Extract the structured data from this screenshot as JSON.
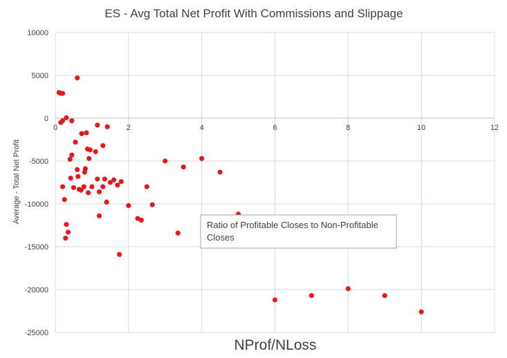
{
  "chart_data": {
    "type": "scatter",
    "title": "ES - Avg Total Net Profit With Commissions and Slippage",
    "xlabel": "NProf/NLoss",
    "ylabel": "Average - Total Net Profit",
    "xlim": [
      0,
      12
    ],
    "ylim": [
      -25000,
      10000
    ],
    "x_ticks": [
      "0",
      "2",
      "4",
      "6",
      "8",
      "10",
      "12"
    ],
    "y_ticks": [
      "10000",
      "5000",
      "0",
      "-5000",
      "-10000",
      "-15000",
      "-20000",
      "-25000"
    ],
    "grid": true,
    "marker_color": "#e31a1c",
    "annotation": {
      "line1": "Ratio of Profitable Closes to Non-Profitable",
      "line2": "Closes"
    },
    "points": [
      {
        "x": 0.1,
        "y": 3000
      },
      {
        "x": 0.15,
        "y": 2900
      },
      {
        "x": 0.2,
        "y": 2900
      },
      {
        "x": 0.6,
        "y": 4700
      },
      {
        "x": 0.15,
        "y": -500
      },
      {
        "x": 0.2,
        "y": -300
      },
      {
        "x": 0.3,
        "y": 50
      },
      {
        "x": 0.45,
        "y": -300
      },
      {
        "x": 0.2,
        "y": -8000
      },
      {
        "x": 0.25,
        "y": -9500
      },
      {
        "x": 0.3,
        "y": -12400
      },
      {
        "x": 0.35,
        "y": -13300
      },
      {
        "x": 0.28,
        "y": -14000
      },
      {
        "x": 0.4,
        "y": -4800
      },
      {
        "x": 0.42,
        "y": -7000
      },
      {
        "x": 0.45,
        "y": -4300
      },
      {
        "x": 0.5,
        "y": -8100
      },
      {
        "x": 0.55,
        "y": -2800
      },
      {
        "x": 0.6,
        "y": -6000
      },
      {
        "x": 0.62,
        "y": -6800
      },
      {
        "x": 0.65,
        "y": -8300
      },
      {
        "x": 0.7,
        "y": -8400
      },
      {
        "x": 0.72,
        "y": -1800
      },
      {
        "x": 0.78,
        "y": -8000
      },
      {
        "x": 0.8,
        "y": -6300
      },
      {
        "x": 0.82,
        "y": -5900
      },
      {
        "x": 0.85,
        "y": -1700
      },
      {
        "x": 0.88,
        "y": -3600
      },
      {
        "x": 0.9,
        "y": -8700
      },
      {
        "x": 0.92,
        "y": -4700
      },
      {
        "x": 0.95,
        "y": -3700
      },
      {
        "x": 1.0,
        "y": -8000
      },
      {
        "x": 1.1,
        "y": -3900
      },
      {
        "x": 1.15,
        "y": -7100
      },
      {
        "x": 1.2,
        "y": -8600
      },
      {
        "x": 1.2,
        "y": -11400
      },
      {
        "x": 1.15,
        "y": -800
      },
      {
        "x": 1.3,
        "y": -3200
      },
      {
        "x": 1.3,
        "y": -8000
      },
      {
        "x": 1.35,
        "y": -7100
      },
      {
        "x": 1.4,
        "y": -9800
      },
      {
        "x": 1.42,
        "y": -1000
      },
      {
        "x": 1.5,
        "y": -7500
      },
      {
        "x": 1.6,
        "y": -7200
      },
      {
        "x": 1.7,
        "y": -7800
      },
      {
        "x": 1.75,
        "y": -15900
      },
      {
        "x": 1.8,
        "y": -7400
      },
      {
        "x": 2.0,
        "y": -10200
      },
      {
        "x": 2.25,
        "y": -11700
      },
      {
        "x": 2.35,
        "y": -11900
      },
      {
        "x": 2.5,
        "y": -8000
      },
      {
        "x": 2.65,
        "y": -10100
      },
      {
        "x": 3.0,
        "y": -5000
      },
      {
        "x": 3.35,
        "y": -13400
      },
      {
        "x": 3.5,
        "y": -5700
      },
      {
        "x": 4.0,
        "y": -4700
      },
      {
        "x": 4.5,
        "y": -6300
      },
      {
        "x": 5.0,
        "y": -11200
      },
      {
        "x": 6.0,
        "y": -21200
      },
      {
        "x": 7.0,
        "y": -20700
      },
      {
        "x": 8.0,
        "y": -19900
      },
      {
        "x": 9.0,
        "y": -20700
      },
      {
        "x": 10.0,
        "y": -22600
      }
    ]
  }
}
